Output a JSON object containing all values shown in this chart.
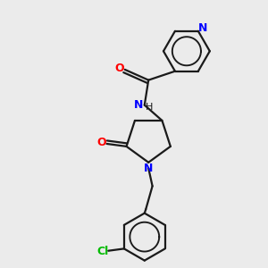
{
  "background_color": "#ebebeb",
  "bond_color": "#1a1a1a",
  "atom_colors": {
    "N": "#0000ff",
    "O": "#ff0000",
    "Cl": "#00bb00",
    "C": "#1a1a1a"
  },
  "figsize": [
    3.0,
    3.0
  ],
  "dpi": 100
}
